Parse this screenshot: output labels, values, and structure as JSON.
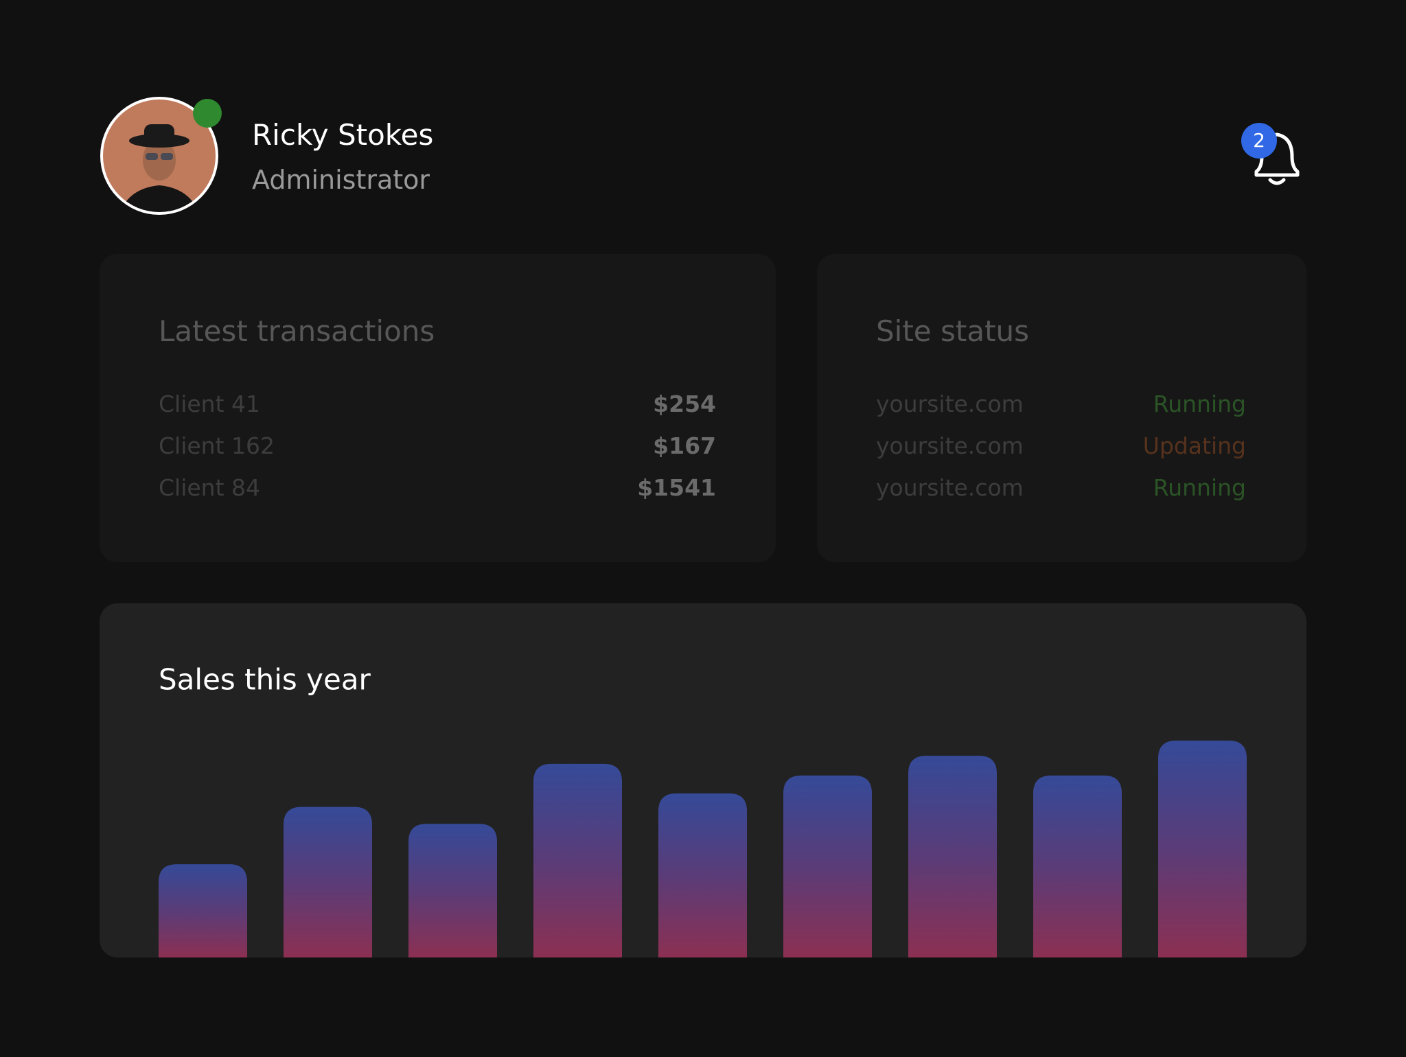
{
  "header": {
    "name": "Ricky Stokes",
    "role": "Administrator"
  },
  "notifications": {
    "count": 2
  },
  "transactions": {
    "title": "Latest transactions",
    "rows": [
      {
        "client": "Client 41",
        "amount": "$254"
      },
      {
        "client": "Client 162",
        "amount": "$167"
      },
      {
        "client": "Client 84",
        "amount": "$1541"
      }
    ]
  },
  "site_status": {
    "title": "Site status",
    "rows": [
      {
        "site": "yoursite.com",
        "status": "Running"
      },
      {
        "site": "yoursite.com",
        "status": "Updating"
      },
      {
        "site": "yoursite.com",
        "status": "Running"
      }
    ]
  },
  "chart_data": {
    "type": "bar",
    "title": "Sales this year",
    "values": [
      104,
      168,
      149,
      216,
      183,
      203,
      225,
      203,
      242
    ]
  }
}
